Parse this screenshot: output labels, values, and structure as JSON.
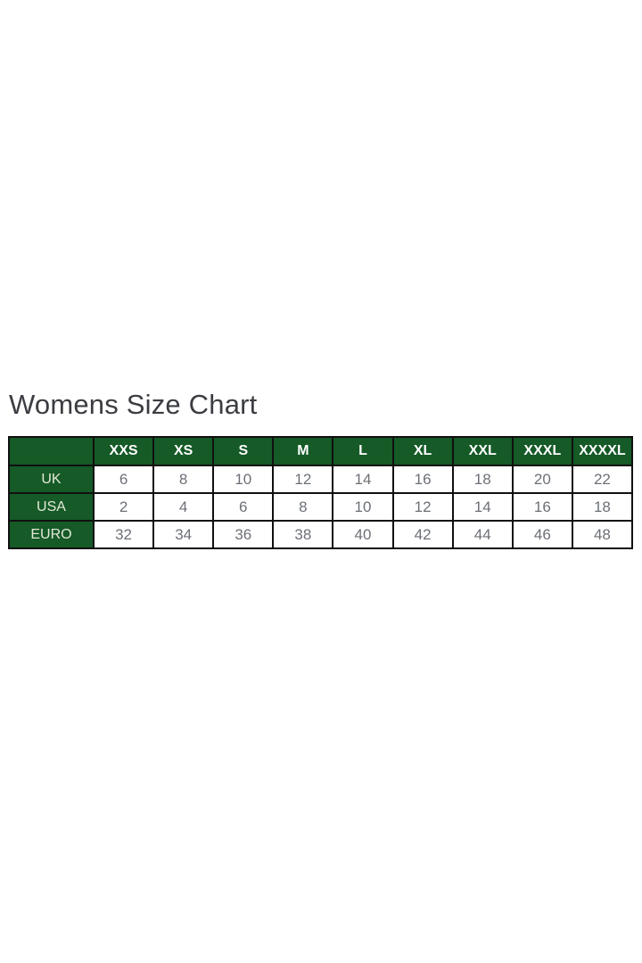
{
  "title": "Womens Size Chart",
  "colors": {
    "page_background": "#FFFFFF",
    "header_green": "#155A27",
    "table_border": "#101010",
    "title_text": "#3B3D42",
    "cell_text": "#6C7076",
    "header_text": "#FFFFFF",
    "row_label_text": "#E4E9D8"
  },
  "chart_data": {
    "type": "table",
    "title": "Womens Size Chart",
    "corner_label": "",
    "columns": [
      "XXS",
      "XS",
      "S",
      "M",
      "L",
      "XL",
      "XXL",
      "XXXL",
      "XXXXL"
    ],
    "rows": [
      {
        "label": "UK",
        "values": [
          6,
          8,
          10,
          12,
          14,
          16,
          18,
          20,
          22
        ]
      },
      {
        "label": "USA",
        "values": [
          2,
          4,
          6,
          8,
          10,
          12,
          14,
          16,
          18
        ]
      },
      {
        "label": "EURO",
        "values": [
          32,
          34,
          36,
          38,
          40,
          42,
          44,
          46,
          48
        ]
      }
    ]
  }
}
